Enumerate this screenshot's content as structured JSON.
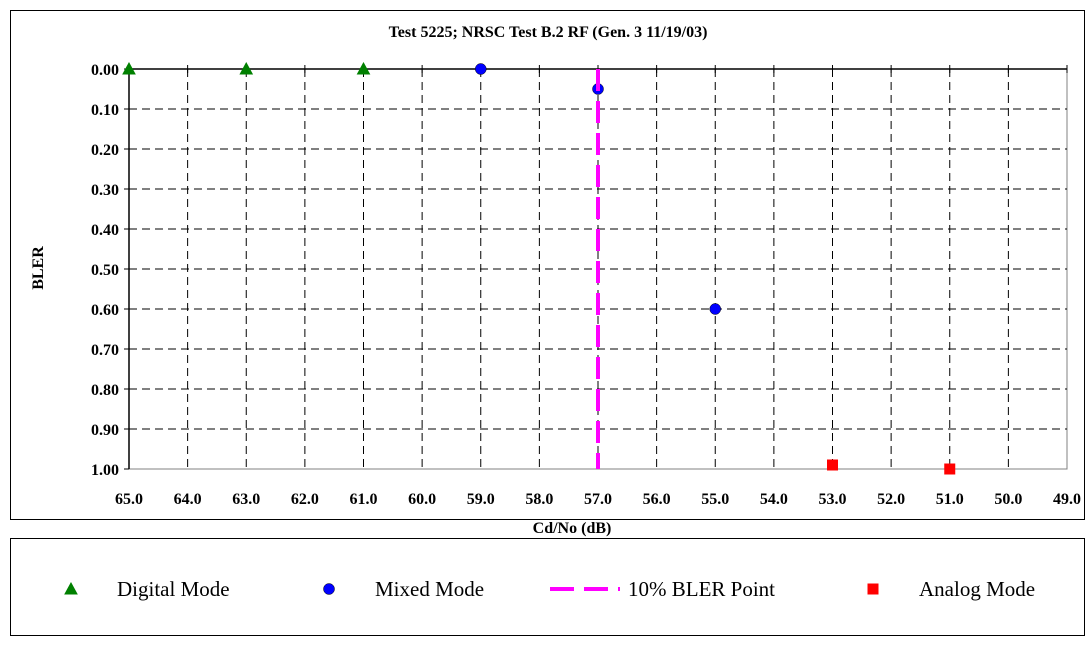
{
  "chart_data": {
    "type": "scatter",
    "title": "Test 5225; NRSC Test B.2 RF (Gen. 3 11/19/03)",
    "xlabel": "Cd/No (dB)",
    "ylabel": "BLER",
    "xlim": [
      65.0,
      49.0
    ],
    "ylim": [
      0.0,
      1.0
    ],
    "x_reversed": true,
    "y_reversed": true,
    "x_ticks": [
      "65.0",
      "64.0",
      "63.0",
      "62.0",
      "61.0",
      "60.0",
      "59.0",
      "58.0",
      "57.0",
      "56.0",
      "55.0",
      "54.0",
      "53.0",
      "52.0",
      "51.0",
      "50.0",
      "49.0"
    ],
    "y_ticks": [
      "0.00",
      "0.10",
      "0.20",
      "0.30",
      "0.40",
      "0.50",
      "0.60",
      "0.70",
      "0.80",
      "0.90",
      "1.00"
    ],
    "grid": true,
    "legend_position": "bottom",
    "series": [
      {
        "name": "Digital Mode",
        "marker": "triangle",
        "color": "#008000",
        "points": [
          [
            65.0,
            0.0
          ],
          [
            63.0,
            0.0
          ],
          [
            61.0,
            0.0
          ]
        ]
      },
      {
        "name": "Mixed Mode",
        "marker": "circle",
        "color": "#0000ff",
        "points": [
          [
            59.0,
            0.0
          ],
          [
            57.0,
            0.05
          ],
          [
            55.0,
            0.6
          ]
        ]
      },
      {
        "name": "10% BLER Point",
        "marker": "dashed-line",
        "color": "#ff00ff",
        "points": [
          [
            57.0,
            0.0
          ],
          [
            57.0,
            1.0
          ]
        ]
      },
      {
        "name": "Analog Mode",
        "marker": "square",
        "color": "#ff0000",
        "points": [
          [
            53.0,
            0.99
          ],
          [
            51.0,
            1.0
          ]
        ]
      }
    ]
  }
}
